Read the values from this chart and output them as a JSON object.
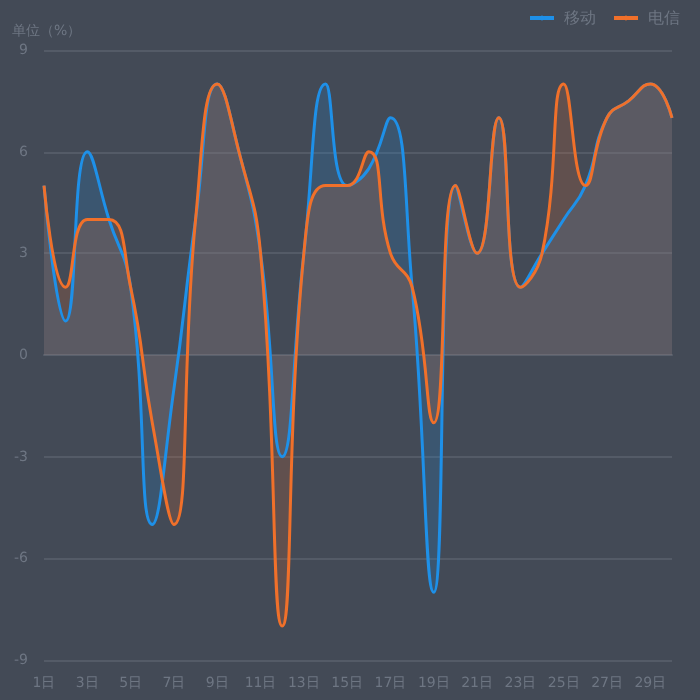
{
  "chart_data": {
    "type": "area",
    "ylabel": "单位（%）",
    "categories": [
      "1日",
      null,
      "3日",
      null,
      "5日",
      null,
      "7日",
      null,
      "9日",
      null,
      "11日",
      null,
      "13日",
      null,
      "15日",
      null,
      "17日",
      null,
      "19日",
      null,
      "21日",
      null,
      "23日",
      null,
      "25日",
      null,
      "27日",
      null,
      "29日",
      null
    ],
    "series": [
      {
        "name": "移动",
        "color": "#1e90e8",
        "values": [
          5,
          1,
          6,
          4,
          2,
          -5,
          -1,
          4,
          8,
          6,
          3,
          -3,
          3,
          8,
          5,
          5.5,
          7,
          2,
          -7,
          5,
          3,
          7,
          2,
          3,
          4,
          5,
          7,
          7.5,
          8,
          7
        ]
      },
      {
        "name": "电信",
        "color": "#f0702a",
        "values": [
          5,
          2,
          4,
          4,
          2,
          -2,
          -5,
          4,
          8,
          6,
          3,
          -8,
          3,
          5,
          5,
          6,
          3,
          2,
          -2,
          5,
          3,
          7,
          2,
          3,
          8,
          5,
          7,
          7.5,
          8,
          7
        ]
      }
    ],
    "ylim": [
      -9,
      9
    ],
    "yticks": [
      -9,
      -6,
      -3,
      0,
      3,
      6,
      9
    ],
    "grid": "y",
    "legend": "top right",
    "marker": "none",
    "line_style": "solid"
  }
}
